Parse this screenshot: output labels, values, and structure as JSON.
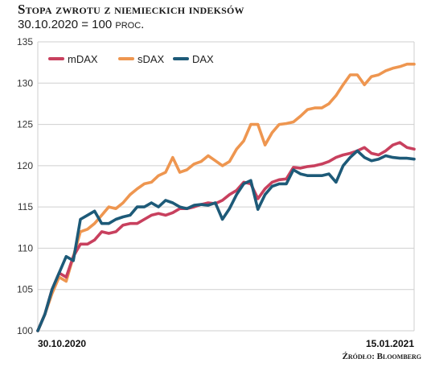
{
  "header": {
    "title": "Stopa zwrotu z niemieckich indeksów",
    "subtitle_main": "30.10.2020 = 100",
    "subtitle_tail": "proc."
  },
  "footer": {
    "source": "Źródło: Bloomberg"
  },
  "chart_data": {
    "type": "line",
    "title": "Stopa zwrotu z niemieckich indeksów",
    "subtitle": "30.10.2020 = 100 proc.",
    "xlabel": "",
    "ylabel": "",
    "ylim": [
      100,
      135
    ],
    "yticks": [
      100,
      105,
      110,
      115,
      120,
      125,
      130,
      135
    ],
    "x_tick_labels": [
      "30.10.2020",
      "15.01.2021"
    ],
    "grid": true,
    "legend_position": "top-left",
    "x": [
      0,
      1,
      2,
      3,
      4,
      5,
      6,
      7,
      8,
      9,
      10,
      11,
      12,
      13,
      14,
      15,
      16,
      17,
      18,
      19,
      20,
      21,
      22,
      23,
      24,
      25,
      26,
      27,
      28,
      29,
      30,
      31,
      32,
      33,
      34,
      35,
      36,
      37,
      38,
      39,
      40,
      41,
      42,
      43,
      44,
      45,
      46,
      47,
      48,
      49,
      50,
      51,
      52,
      53
    ],
    "series": [
      {
        "name": "mDAX",
        "color": "#c8405e",
        "values": [
          100,
          102,
          105,
          107,
          106.5,
          109,
          110.5,
          110.5,
          111,
          112,
          111.8,
          112,
          112.8,
          113,
          113,
          113.5,
          114,
          114.2,
          114,
          114.3,
          114.8,
          114.8,
          115,
          115.3,
          115.5,
          115.4,
          115.8,
          116.5,
          117,
          118,
          117.8,
          116,
          117.2,
          118,
          118.3,
          118.4,
          119.8,
          119.7,
          119.9,
          120,
          120.2,
          120.5,
          121,
          121.3,
          121.5,
          121.8,
          122.2,
          121.5,
          121.3,
          121.8,
          122.5,
          122.8,
          122.2,
          122
        ]
      },
      {
        "name": "sDAX",
        "color": "#ee9650",
        "values": [
          100,
          102,
          104.5,
          106.5,
          106,
          109,
          112,
          112.3,
          113,
          114,
          115,
          114.8,
          115.5,
          116.5,
          117.2,
          117.8,
          118,
          118.8,
          119.2,
          121,
          119.2,
          119.5,
          120.2,
          120.5,
          121.2,
          120.6,
          120,
          120.5,
          122,
          123,
          125,
          125,
          122.5,
          124,
          125,
          125.1,
          125.3,
          126,
          126.8,
          127,
          127,
          127.5,
          128.5,
          129.8,
          131,
          131,
          129.8,
          130.8,
          131,
          131.5,
          131.8,
          132,
          132.3,
          132.3
        ]
      },
      {
        "name": "DAX",
        "color": "#1d5a78",
        "values": [
          100,
          102,
          105,
          107,
          109,
          108.5,
          113.5,
          114,
          114.5,
          113,
          113,
          113.5,
          113.8,
          114,
          115,
          115,
          115.5,
          115,
          115.8,
          115.5,
          115,
          114.8,
          115.2,
          115.3,
          115.2,
          115.5,
          113.5,
          114.8,
          116.5,
          117.8,
          118.2,
          114.7,
          116.5,
          117.5,
          117.8,
          117.8,
          119.5,
          119,
          118.8,
          118.8,
          118.8,
          119,
          118,
          120,
          121,
          121.8,
          121,
          120.6,
          120.8,
          121.2,
          121,
          120.9,
          120.9,
          120.8
        ]
      }
    ]
  }
}
